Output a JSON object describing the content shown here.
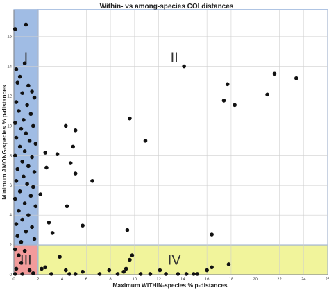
{
  "chart_data": {
    "type": "scatter",
    "title": "Within- vs among-species COI distances",
    "xlabel": "Maximum WITHIN-species % p-distances",
    "ylabel": "Minimum AMONG-species % p-distances",
    "xlim": [
      0,
      26
    ],
    "ylim": [
      0,
      17.8
    ],
    "xticks": [
      0,
      2,
      4,
      6,
      8,
      10,
      12,
      14,
      16,
      18,
      20,
      22,
      24,
      26
    ],
    "yticks": [
      0,
      2,
      4,
      6,
      8,
      10,
      12,
      14,
      16
    ],
    "grid": true,
    "regions": [
      {
        "label": "I",
        "x": [
          0,
          2
        ],
        "y": [
          2,
          17.8
        ],
        "color": "#8fb0df"
      },
      {
        "label": "II",
        "x": [
          2,
          26
        ],
        "y": [
          2,
          17.8
        ],
        "color": "#ffffff"
      },
      {
        "label": "III",
        "x": [
          0,
          2
        ],
        "y": [
          0,
          2
        ],
        "color": "#f08a8a"
      },
      {
        "label": "IV",
        "x": [
          2,
          26
        ],
        "y": [
          0,
          2
        ],
        "color": "#eef28a"
      }
    ],
    "region_label_positions": [
      {
        "label": "I",
        "x": 1.0,
        "y": 14.6
      },
      {
        "label": "II",
        "x": 13.3,
        "y": 14.6
      },
      {
        "label": "III",
        "x": 1.0,
        "y": 1.0
      },
      {
        "label": "IV",
        "x": 13.3,
        "y": 1.0
      }
    ],
    "points": [
      {
        "x": 0.1,
        "y": 16.5
      },
      {
        "x": 1.0,
        "y": 16.8
      },
      {
        "x": 0.2,
        "y": 13.8
      },
      {
        "x": 0.9,
        "y": 14.2
      },
      {
        "x": 0.5,
        "y": 13.3
      },
      {
        "x": 1.2,
        "y": 12.7
      },
      {
        "x": 0.3,
        "y": 12.9
      },
      {
        "x": 1.5,
        "y": 12.3
      },
      {
        "x": 0.7,
        "y": 12.2
      },
      {
        "x": 0.2,
        "y": 11.6
      },
      {
        "x": 1.1,
        "y": 11.4
      },
      {
        "x": 1.7,
        "y": 11.9
      },
      {
        "x": 0.4,
        "y": 11.0
      },
      {
        "x": 1.4,
        "y": 10.8
      },
      {
        "x": 0.8,
        "y": 10.4
      },
      {
        "x": 0.1,
        "y": 10.2
      },
      {
        "x": 1.6,
        "y": 10.0
      },
      {
        "x": 0.6,
        "y": 9.8
      },
      {
        "x": 1.0,
        "y": 9.5
      },
      {
        "x": 0.2,
        "y": 9.2
      },
      {
        "x": 1.3,
        "y": 9.0
      },
      {
        "x": 1.8,
        "y": 8.8
      },
      {
        "x": 0.5,
        "y": 8.6
      },
      {
        "x": 0.9,
        "y": 8.3
      },
      {
        "x": 0.1,
        "y": 8.0
      },
      {
        "x": 1.5,
        "y": 7.9
      },
      {
        "x": 0.7,
        "y": 7.6
      },
      {
        "x": 1.2,
        "y": 7.3
      },
      {
        "x": 0.3,
        "y": 7.1
      },
      {
        "x": 1.7,
        "y": 6.9
      },
      {
        "x": 0.8,
        "y": 6.6
      },
      {
        "x": 0.2,
        "y": 6.3
      },
      {
        "x": 1.1,
        "y": 6.1
      },
      {
        "x": 1.6,
        "y": 5.9
      },
      {
        "x": 0.5,
        "y": 5.6
      },
      {
        "x": 1.4,
        "y": 5.3
      },
      {
        "x": 0.1,
        "y": 5.1
      },
      {
        "x": 0.9,
        "y": 4.8
      },
      {
        "x": 1.8,
        "y": 4.6
      },
      {
        "x": 0.4,
        "y": 4.3
      },
      {
        "x": 1.2,
        "y": 4.0
      },
      {
        "x": 0.7,
        "y": 3.7
      },
      {
        "x": 0.2,
        "y": 3.4
      },
      {
        "x": 1.5,
        "y": 3.2
      },
      {
        "x": 1.0,
        "y": 2.9
      },
      {
        "x": 0.3,
        "y": 2.6
      },
      {
        "x": 1.7,
        "y": 2.4
      },
      {
        "x": 0.6,
        "y": 2.2
      },
      {
        "x": 0.1,
        "y": 1.7
      },
      {
        "x": 0.4,
        "y": 1.3
      },
      {
        "x": 0.9,
        "y": 1.6
      },
      {
        "x": 0.6,
        "y": 0.8
      },
      {
        "x": 0.2,
        "y": 0.4
      },
      {
        "x": 1.3,
        "y": 0.3
      },
      {
        "x": 0.1,
        "y": 0.05
      },
      {
        "x": 0.7,
        "y": 0.05
      },
      {
        "x": 1.6,
        "y": 0.1
      },
      {
        "x": 2.2,
        "y": 5.4
      },
      {
        "x": 2.6,
        "y": 8.2
      },
      {
        "x": 2.7,
        "y": 7.2
      },
      {
        "x": 2.9,
        "y": 3.5
      },
      {
        "x": 3.2,
        "y": 2.8
      },
      {
        "x": 3.6,
        "y": 8.1
      },
      {
        "x": 4.3,
        "y": 10.0
      },
      {
        "x": 4.4,
        "y": 4.6
      },
      {
        "x": 4.7,
        "y": 7.5
      },
      {
        "x": 4.9,
        "y": 8.6
      },
      {
        "x": 5.1,
        "y": 9.7
      },
      {
        "x": 5.1,
        "y": 6.8
      },
      {
        "x": 5.7,
        "y": 3.3
      },
      {
        "x": 6.5,
        "y": 6.3
      },
      {
        "x": 9.4,
        "y": 3.0
      },
      {
        "x": 9.6,
        "y": 10.5
      },
      {
        "x": 10.9,
        "y": 9.0
      },
      {
        "x": 14.1,
        "y": 14.0
      },
      {
        "x": 16.4,
        "y": 2.7
      },
      {
        "x": 17.4,
        "y": 11.7
      },
      {
        "x": 17.7,
        "y": 12.8
      },
      {
        "x": 18.3,
        "y": 11.4
      },
      {
        "x": 21.0,
        "y": 12.1
      },
      {
        "x": 21.6,
        "y": 13.5
      },
      {
        "x": 23.4,
        "y": 13.2
      },
      {
        "x": 2.3,
        "y": 0.4
      },
      {
        "x": 2.6,
        "y": 0.5
      },
      {
        "x": 3.1,
        "y": 0.05
      },
      {
        "x": 3.8,
        "y": 1.2
      },
      {
        "x": 4.3,
        "y": 0.3
      },
      {
        "x": 4.6,
        "y": 0.05
      },
      {
        "x": 5.1,
        "y": 0.05
      },
      {
        "x": 5.7,
        "y": 0.2
      },
      {
        "x": 7.1,
        "y": 0.05
      },
      {
        "x": 7.9,
        "y": 0.3
      },
      {
        "x": 8.6,
        "y": 0.05
      },
      {
        "x": 9.1,
        "y": 0.2
      },
      {
        "x": 9.3,
        "y": 0.4
      },
      {
        "x": 9.6,
        "y": 1.0
      },
      {
        "x": 9.8,
        "y": 1.3
      },
      {
        "x": 10.5,
        "y": 0.05
      },
      {
        "x": 11.3,
        "y": 0.05
      },
      {
        "x": 12.1,
        "y": 0.3
      },
      {
        "x": 12.6,
        "y": 0.05
      },
      {
        "x": 13.6,
        "y": 0.05
      },
      {
        "x": 14.3,
        "y": 0.05
      },
      {
        "x": 14.9,
        "y": 0.05
      },
      {
        "x": 15.2,
        "y": 0.05
      },
      {
        "x": 16.0,
        "y": 0.3
      },
      {
        "x": 16.4,
        "y": 0.5
      },
      {
        "x": 17.8,
        "y": 0.7
      }
    ]
  }
}
